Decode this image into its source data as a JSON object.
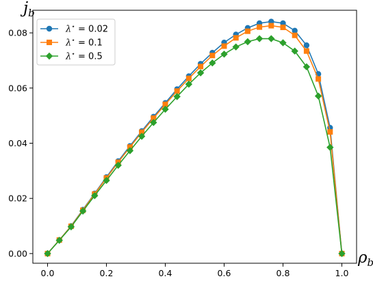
{
  "chart_data": {
    "type": "line",
    "title": "",
    "xlabel": "ρ",
    "xlabel_sub": "b",
    "ylabel": "j",
    "ylabel_sub": "b",
    "xlim": [
      -0.05,
      1.05
    ],
    "ylim": [
      -0.0035,
      0.0882
    ],
    "xticks": [
      0.0,
      0.2,
      0.4,
      0.6,
      0.8,
      1.0
    ],
    "xtick_labels": [
      "0.0",
      "0.2",
      "0.4",
      "0.6",
      "0.8",
      "1.0"
    ],
    "yticks": [
      0.0,
      0.02,
      0.04,
      0.06,
      0.08
    ],
    "ytick_labels": [
      "0.00",
      "0.02",
      "0.04",
      "0.06",
      "0.08"
    ],
    "grid": false,
    "legend_position": "top-left",
    "x": [
      0.0,
      0.04,
      0.08,
      0.12,
      0.16,
      0.2,
      0.24,
      0.28,
      0.32,
      0.36,
      0.4,
      0.44,
      0.48,
      0.52,
      0.56,
      0.6,
      0.64,
      0.68,
      0.72,
      0.76,
      0.8,
      0.84,
      0.88,
      0.92,
      0.96,
      1.0
    ],
    "series": [
      {
        "name": "λ* = 0.02",
        "label_prefix": "λ",
        "label_sup": "⋆",
        "label_suffix": " = 0.02",
        "color": "#1f77b4",
        "marker": "circle",
        "values": [
          0.0,
          0.0049,
          0.01,
          0.0159,
          0.0218,
          0.0277,
          0.0335,
          0.039,
          0.0444,
          0.0496,
          0.0546,
          0.0596,
          0.0643,
          0.0688,
          0.0728,
          0.0765,
          0.0794,
          0.0818,
          0.0835,
          0.0841,
          0.0835,
          0.0808,
          0.0755,
          0.0651,
          0.0456,
          0.0
        ]
      },
      {
        "name": "λ* = 0.1",
        "label_prefix": "λ",
        "label_sup": "⋆",
        "label_suffix": " = 0.1",
        "color": "#ff7f0e",
        "marker": "square",
        "values": [
          0.0,
          0.0049,
          0.0099,
          0.0157,
          0.0216,
          0.0274,
          0.0331,
          0.0386,
          0.044,
          0.0491,
          0.0541,
          0.0589,
          0.0635,
          0.0678,
          0.0718,
          0.0752,
          0.0782,
          0.0806,
          0.0821,
          0.0826,
          0.082,
          0.0791,
          0.0734,
          0.0633,
          0.0441,
          0.0
        ]
      },
      {
        "name": "λ* = 0.5",
        "label_prefix": "λ",
        "label_sup": "⋆",
        "label_suffix": " = 0.5",
        "color": "#2ca02c",
        "marker": "diamond",
        "values": [
          0.0,
          0.0048,
          0.0097,
          0.0154,
          0.021,
          0.0265,
          0.032,
          0.0373,
          0.0425,
          0.0475,
          0.0523,
          0.0569,
          0.0614,
          0.0655,
          0.0691,
          0.0723,
          0.0749,
          0.0768,
          0.0779,
          0.0779,
          0.0764,
          0.0734,
          0.0677,
          0.0571,
          0.0385,
          0.0
        ]
      }
    ]
  }
}
